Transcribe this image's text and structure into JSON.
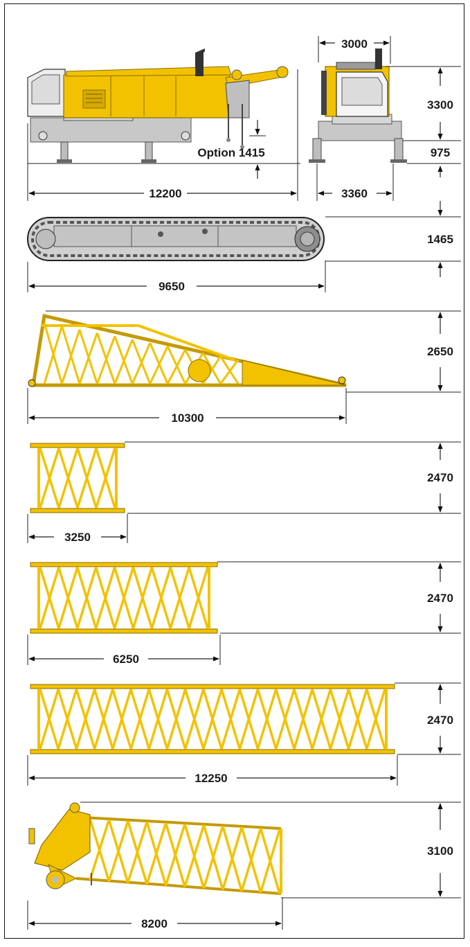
{
  "colors": {
    "steel_yellow": "#f2c200",
    "steel_dark": "#c49a00",
    "body_gray": "#c8c8c8",
    "line_dark": "#222222"
  },
  "views": {
    "base_side": {
      "length": "12200",
      "option_label": "Option 1415"
    },
    "base_front": {
      "width_top": "3000",
      "height": "3300",
      "clearance": "975",
      "track_width": "3360"
    },
    "crawler": {
      "length": "9650",
      "height": "1465"
    },
    "boom_foot": {
      "length": "10300",
      "height": "2650"
    },
    "section_short": {
      "length": "3250",
      "height": "2470"
    },
    "section_mid": {
      "length": "6250",
      "height": "2470"
    },
    "section_long": {
      "length": "12250",
      "height": "2470"
    },
    "boom_head": {
      "length": "8200",
      "height": "3100"
    }
  }
}
